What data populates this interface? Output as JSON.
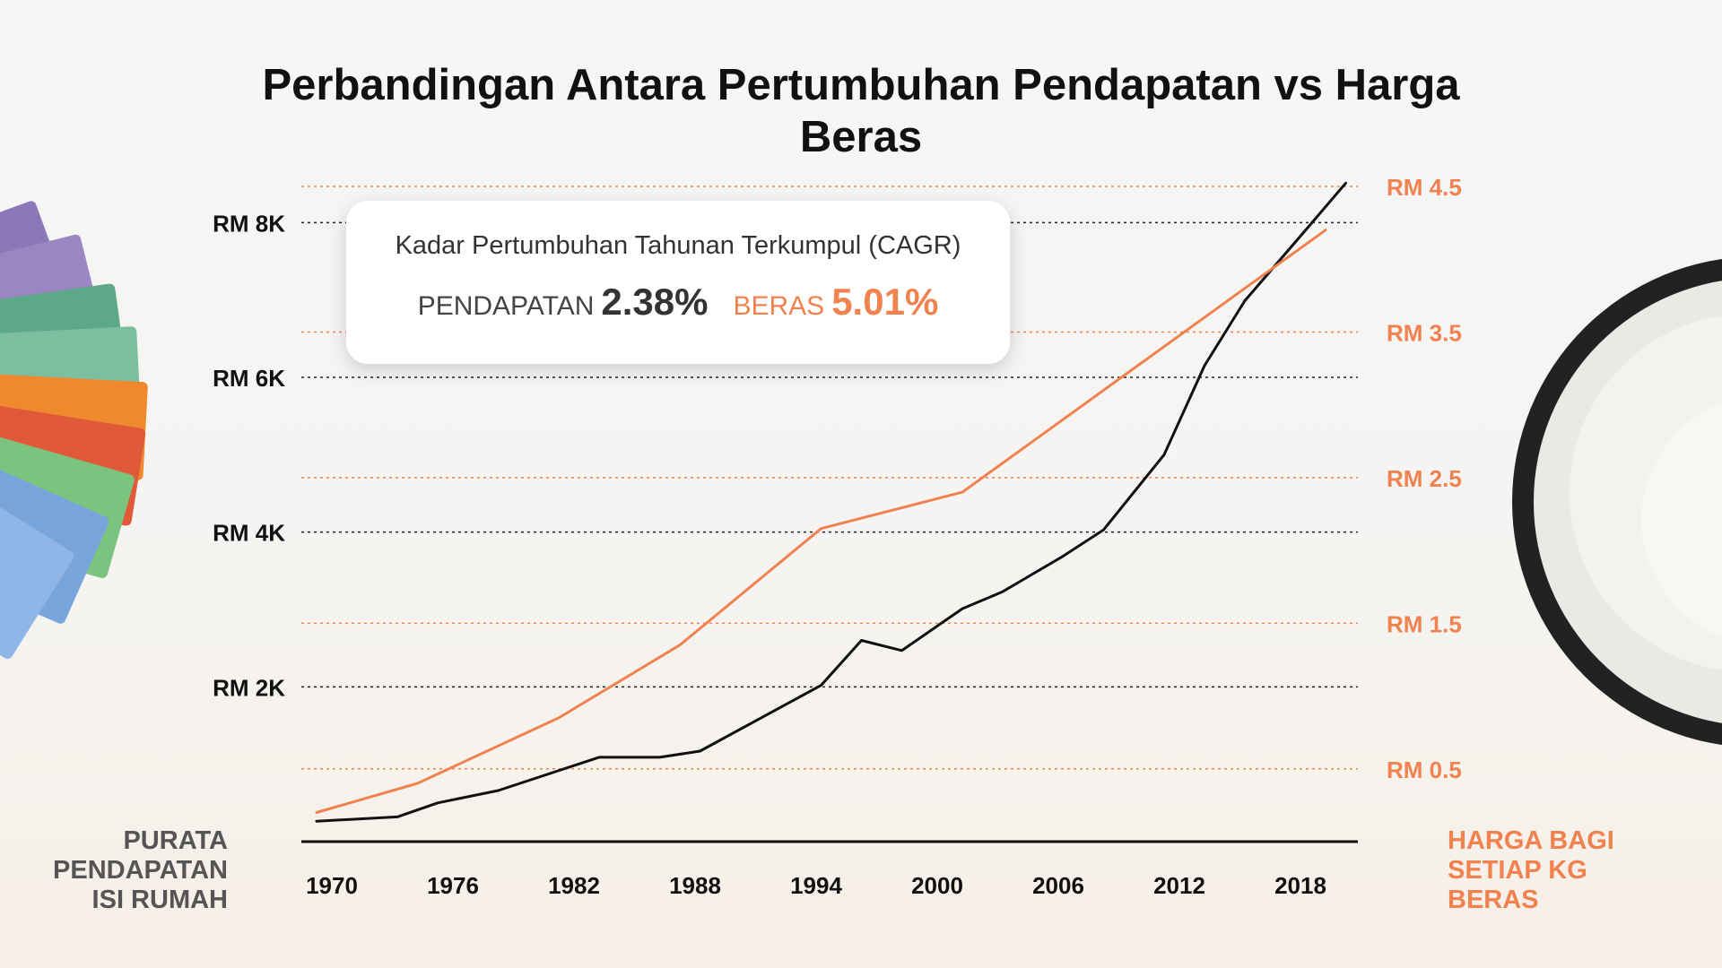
{
  "title": "Perbandingan Antara Pertumbuhan Pendapatan vs Harga Beras",
  "cagr": {
    "title": "Kadar Pertumbuhan Tahunan Terkumpul (CAGR)",
    "income_label": "PENDAPATAN",
    "income_value": "2.38%",
    "rice_label": "BERAS",
    "rice_value": "5.01%"
  },
  "left_axis_title": "PURATA PENDAPATAN ISI RUMAH",
  "right_axis_title": "HARGA BAGI SETIAP KG BERAS",
  "colors": {
    "income": "#111111",
    "rice": "#f08250",
    "text": "#111111"
  },
  "chart_data": {
    "type": "line",
    "x_ticks": [
      "1970",
      "1976",
      "1982",
      "1988",
      "1994",
      "2000",
      "2006",
      "2012",
      "2018"
    ],
    "xlim": [
      1969,
      2021
    ],
    "y_left": {
      "ticks": [
        "RM 2K",
        "RM 4K",
        "RM 6K",
        "RM 8K"
      ],
      "tick_values": [
        2000,
        4000,
        6000,
        8000
      ],
      "lim": [
        0,
        9000
      ]
    },
    "y_right": {
      "ticks": [
        "RM 0.5",
        "RM 1.5",
        "RM 2.5",
        "RM 3.5",
        "RM 4.5"
      ],
      "tick_values": [
        0.5,
        1.5,
        2.5,
        3.5,
        4.5
      ],
      "lim": [
        0,
        4.5
      ]
    },
    "grid": true,
    "series": [
      {
        "axis": "left",
        "points": [
          [
            1970,
            264
          ],
          [
            1974,
            320
          ],
          [
            1976,
            500
          ],
          [
            1979,
            660
          ],
          [
            1984,
            1090
          ],
          [
            1987,
            1090
          ],
          [
            1989,
            1170
          ],
          [
            1995,
            2020
          ],
          [
            1997,
            2600
          ],
          [
            1999,
            2470
          ],
          [
            2002,
            3010
          ],
          [
            2004,
            3230
          ],
          [
            2007,
            3690
          ],
          [
            2009,
            4030
          ],
          [
            2012,
            5000
          ],
          [
            2014,
            6150
          ],
          [
            2016,
            6990
          ],
          [
            2019,
            7900
          ],
          [
            2021,
            8510
          ]
        ]
      },
      {
        "axis": "right",
        "points": [
          [
            1970,
            0.2
          ],
          [
            1975,
            0.4
          ],
          [
            1982,
            0.85
          ],
          [
            1988,
            1.35
          ],
          [
            1995,
            2.15
          ],
          [
            2002,
            2.4
          ],
          [
            2020,
            4.2
          ]
        ]
      }
    ]
  }
}
